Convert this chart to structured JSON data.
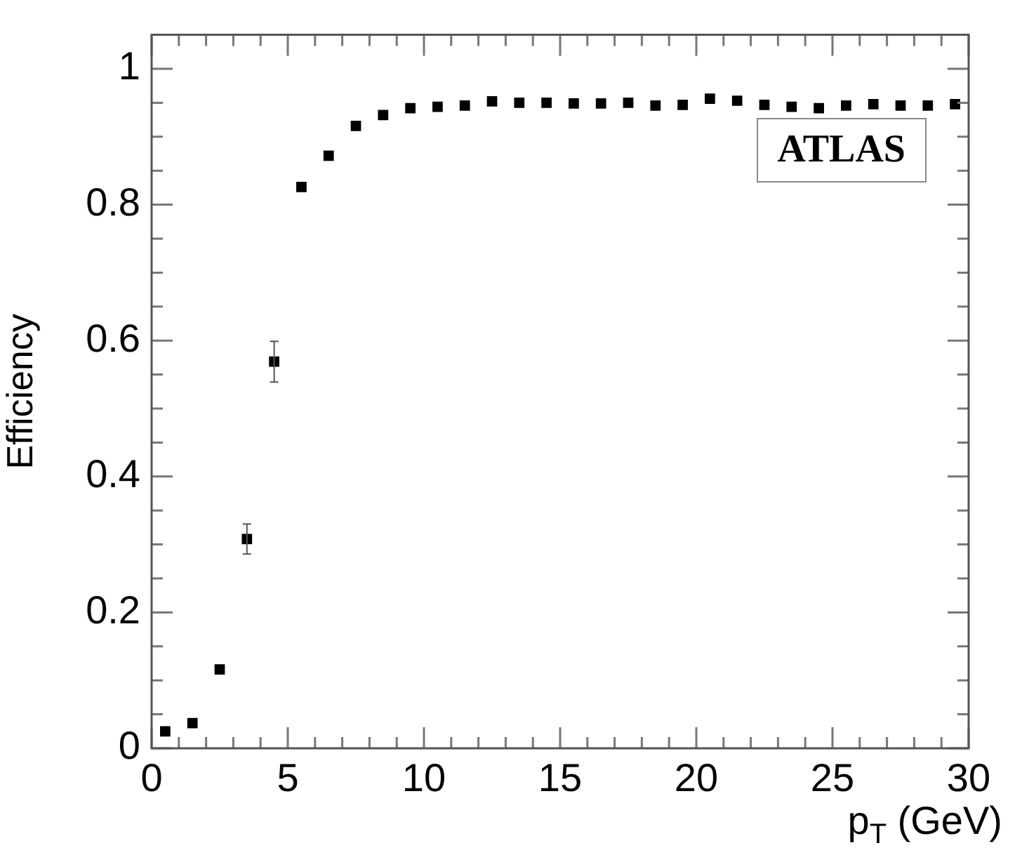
{
  "chart_data": {
    "type": "scatter",
    "xlabel": "p$_{T}$ (GeV)",
    "ylabel": "Efficiency",
    "x": [
      0.5,
      1.5,
      2.5,
      3.5,
      4.5,
      5.5,
      6.5,
      7.5,
      8.5,
      9.5,
      10.5,
      11.5,
      12.5,
      13.5,
      14.5,
      15.5,
      16.5,
      17.5,
      18.5,
      19.5,
      20.5,
      21.5,
      22.5,
      23.5,
      24.5,
      25.5,
      26.5,
      27.5,
      28.5,
      29.5
    ],
    "values": [
      0.025,
      0.037,
      0.116,
      0.308,
      0.569,
      0.826,
      0.872,
      0.916,
      0.932,
      0.942,
      0.944,
      0.946,
      0.952,
      0.95,
      0.95,
      0.949,
      0.949,
      0.95,
      0.946,
      0.947,
      0.956,
      0.953,
      0.947,
      0.944,
      0.942,
      0.946,
      0.948,
      0.946,
      0.946,
      0.948
    ],
    "errors": [
      null,
      null,
      null,
      0.022,
      0.03,
      null,
      null,
      null,
      null,
      null,
      null,
      null,
      null,
      null,
      null,
      null,
      null,
      null,
      null,
      null,
      null,
      null,
      null,
      null,
      null,
      null,
      null,
      null,
      null,
      null
    ],
    "color": "#000000",
    "marker": "square",
    "grid": false,
    "legend": false,
    "xlim": [
      0,
      30
    ],
    "xticks": [
      0,
      5,
      10,
      15,
      20,
      25,
      30
    ],
    "ylim": [
      0,
      1.05
    ],
    "yticks": [
      0,
      0.2,
      0.4,
      0.6,
      0.8,
      1
    ],
    "annotations": [
      "ATLAS"
    ]
  }
}
